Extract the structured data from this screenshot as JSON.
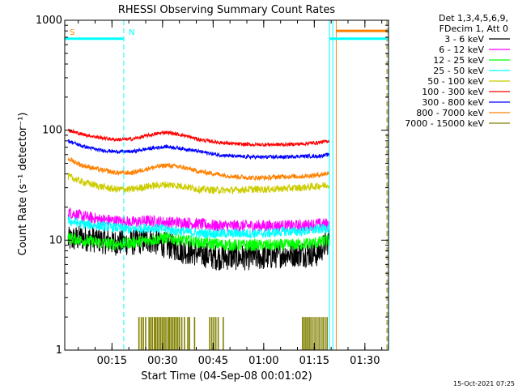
{
  "chart_data": {
    "type": "line",
    "title": "RHESSI Observing Summary Count Rates",
    "xlabel": "Start Time (04-Sep-08 00:01:02)",
    "ylabel": "Count Rate (s⁻¹ detector⁻¹)",
    "y_scale": "log",
    "ylim": [
      1,
      1000
    ],
    "xlim_minutes": [
      0,
      96
    ],
    "x_ticks": [
      {
        "label": "00:15",
        "minutes": 14
      },
      {
        "label": "00:30",
        "minutes": 29
      },
      {
        "label": "00:45",
        "minutes": 44
      },
      {
        "label": "01:00",
        "minutes": 59
      },
      {
        "label": "01:15",
        "minutes": 74
      },
      {
        "label": "01:30",
        "minutes": 89
      }
    ],
    "y_ticks": [
      {
        "label": "1",
        "value": 1
      },
      {
        "label": "10",
        "value": 10
      },
      {
        "label": "100",
        "value": 100
      },
      {
        "label": "1000",
        "value": 1000
      }
    ],
    "legend_header": [
      "Det 1,3,4,5,6,9,",
      "FDecim 1, Att 0"
    ],
    "legend_placement": "right, outside plot",
    "series": [
      {
        "name": "3 - 6 keV",
        "color": "#000000",
        "x": [
          1,
          5,
          10,
          15,
          20,
          25,
          30,
          33,
          35,
          40,
          45,
          50,
          55,
          60,
          65,
          70,
          75,
          78.5
        ],
        "values": [
          10,
          10.5,
          10,
          9.5,
          9.5,
          10,
          9,
          8.5,
          8,
          7.5,
          7,
          7,
          7,
          7,
          7.5,
          7.5,
          7.5,
          10
        ],
        "noise": 0.22
      },
      {
        "name": "6 - 12 keV",
        "color": "#ff00ff",
        "x": [
          1,
          5,
          10,
          15,
          20,
          25,
          30,
          35,
          40,
          45,
          50,
          55,
          60,
          65,
          70,
          75,
          78.5
        ],
        "values": [
          18,
          16.5,
          15.5,
          15,
          14.5,
          15,
          14.5,
          14.5,
          14,
          13.5,
          13.5,
          13.5,
          13.5,
          13.5,
          13.5,
          14,
          14
        ],
        "noise": 0.1
      },
      {
        "name": "12 - 25 keV",
        "color": "#00ff00",
        "x": [
          1,
          5,
          10,
          15,
          20,
          25,
          30,
          35,
          40,
          45,
          50,
          55,
          60,
          65,
          70,
          75,
          78.5
        ],
        "values": [
          10.5,
          10,
          9.5,
          9.2,
          9.5,
          10,
          10.5,
          10,
          9.5,
          9.2,
          9,
          9,
          9,
          9,
          9.2,
          9.5,
          10
        ],
        "noise": 0.1
      },
      {
        "name": "25 - 50 keV",
        "color": "#00ffff",
        "x": [
          1,
          5,
          10,
          15,
          20,
          25,
          30,
          35,
          40,
          45,
          50,
          55,
          60,
          65,
          70,
          75,
          78.5
        ],
        "values": [
          15,
          14,
          13.5,
          13,
          12.5,
          13,
          12.5,
          12,
          11.5,
          11.5,
          11.5,
          11.5,
          11.5,
          12,
          12,
          12.5,
          13
        ],
        "noise": 0.08
      },
      {
        "name": "50 - 100 keV",
        "color": "#cccc00",
        "x": [
          1,
          5,
          10,
          15,
          20,
          25,
          30,
          35,
          40,
          45,
          50,
          55,
          60,
          65,
          70,
          75,
          78.5
        ],
        "values": [
          38,
          34,
          31,
          29,
          29,
          31,
          32,
          31,
          29,
          28.5,
          28.5,
          29,
          29,
          29.5,
          30,
          31,
          32
        ],
        "noise": 0.06
      },
      {
        "name": "100 - 300 keV",
        "color": "#ff0000",
        "x": [
          1,
          5,
          10,
          15,
          20,
          25,
          30,
          35,
          40,
          45,
          50,
          55,
          60,
          65,
          70,
          75,
          78.5
        ],
        "values": [
          100,
          92,
          86,
          82,
          83,
          90,
          96,
          90,
          82,
          78,
          75,
          74,
          74,
          74,
          75,
          77,
          80
        ],
        "noise": 0.03
      },
      {
        "name": "300 - 800 keV",
        "color": "#0000ff",
        "x": [
          1,
          5,
          10,
          15,
          20,
          25,
          30,
          35,
          40,
          45,
          50,
          55,
          60,
          65,
          70,
          75,
          78.5
        ],
        "values": [
          80,
          72,
          66,
          64,
          64,
          68,
          71,
          68,
          64,
          60,
          58,
          57,
          57,
          57,
          58,
          58,
          60
        ],
        "noise": 0.03
      },
      {
        "name": "800 - 7000 keV",
        "color": "#ff8000",
        "x": [
          1,
          5,
          10,
          15,
          20,
          25,
          30,
          35,
          40,
          45,
          50,
          55,
          60,
          65,
          70,
          75,
          78.5
        ],
        "values": [
          55,
          48,
          44,
          41,
          41,
          45,
          48,
          46,
          42,
          40,
          38,
          37,
          37,
          38,
          38,
          39,
          41
        ],
        "noise": 0.04
      },
      {
        "name": "7000 - 15000 keV",
        "color": "#808000",
        "x": [],
        "values": [],
        "noise": 0
      }
    ],
    "olive_spikes": {
      "level": 2,
      "x_minutes": [
        22,
        22.7,
        23.3,
        24,
        25,
        25.5,
        26,
        26.6,
        27,
        27.5,
        28,
        28.5,
        29,
        29.5,
        30,
        30.6,
        31,
        31.5,
        32,
        32.5,
        33,
        33.5,
        34,
        34.7,
        35.5,
        36.5,
        37,
        38.5,
        43,
        43.6,
        44.2,
        44.8,
        45.5,
        47,
        70.5,
        71,
        71.5,
        72,
        72.5,
        73,
        73.6,
        74.2,
        74.8,
        75.4,
        76,
        76.6,
        77.2,
        77.8
      ]
    },
    "annotations": [
      {
        "text": "S",
        "color": "#ff8000",
        "minutes": 0.5
      },
      {
        "text": "N",
        "color": "#00ffff",
        "minutes": 18
      }
    ],
    "flag_bars": [
      {
        "color": "#00ffff",
        "from": 0,
        "to": 17.5,
        "value": 680
      },
      {
        "color": "#00ffff",
        "from": 78.5,
        "to": 95.5,
        "value": 680
      },
      {
        "color": "#ff8000",
        "from": 80.5,
        "to": 95.5,
        "value": 800
      }
    ],
    "vertical_lines": [
      {
        "color": "#ff8000",
        "minutes": 0,
        "style": "dashed"
      },
      {
        "color": "#00ffff",
        "minutes": 17.5,
        "style": "dashed"
      },
      {
        "color": "#00ffff",
        "minutes": 78.5,
        "style": "solid"
      },
      {
        "color": "#00ffff",
        "minutes": 79.5,
        "style": "solid"
      },
      {
        "color": "#ff8000",
        "minutes": 80.5,
        "style": "solid"
      },
      {
        "color": "#ff8000",
        "minutes": 95.5,
        "style": "dashed"
      },
      {
        "color": "#00ffff",
        "minutes": 95.8,
        "style": "dashed"
      }
    ],
    "footer_timestamp": "15-Oct-2021 07:25"
  }
}
